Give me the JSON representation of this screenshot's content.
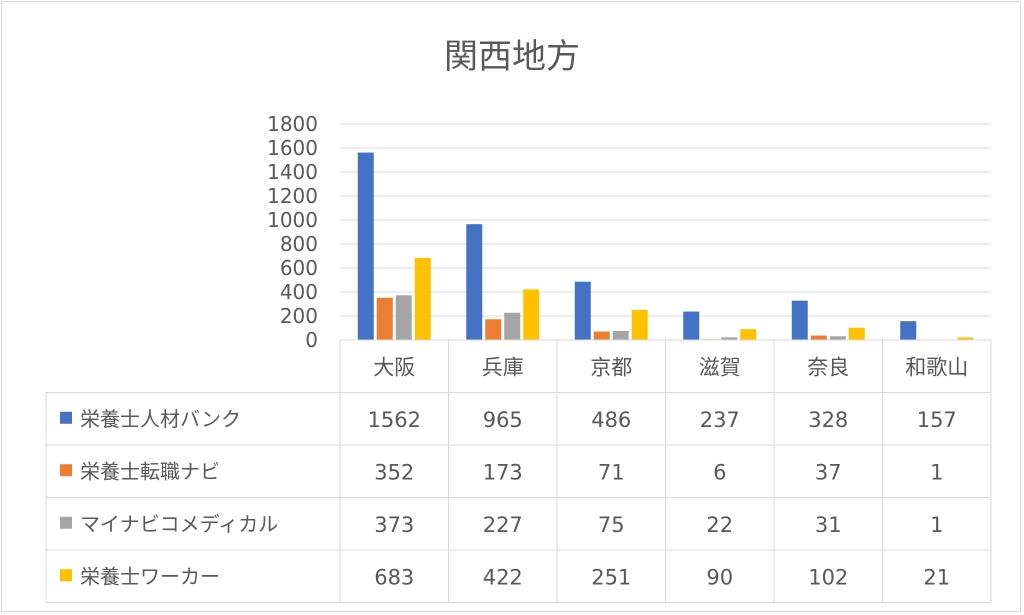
{
  "chart_data": {
    "type": "bar",
    "title": "関西地方",
    "categories": [
      "大阪",
      "兵庫",
      "京都",
      "滋賀",
      "奈良",
      "和歌山"
    ],
    "series": [
      {
        "name": "栄養士人材バンク",
        "color": "#4472c4",
        "values": [
          1562,
          965,
          486,
          237,
          328,
          157
        ]
      },
      {
        "name": "栄養士転職ナビ",
        "color": "#ed7d31",
        "values": [
          352,
          173,
          71,
          6,
          37,
          1
        ]
      },
      {
        "name": "マイナビコメディカル",
        "color": "#a5a5a5",
        "values": [
          373,
          227,
          75,
          22,
          31,
          1
        ]
      },
      {
        "name": "栄養士ワーカー",
        "color": "#ffc000",
        "values": [
          683,
          422,
          251,
          90,
          102,
          21
        ]
      }
    ],
    "ylim": [
      0,
      1800
    ],
    "yticks": [
      0,
      200,
      400,
      600,
      800,
      1000,
      1200,
      1400,
      1600,
      1800
    ],
    "grid": true,
    "legend": "data-table"
  }
}
